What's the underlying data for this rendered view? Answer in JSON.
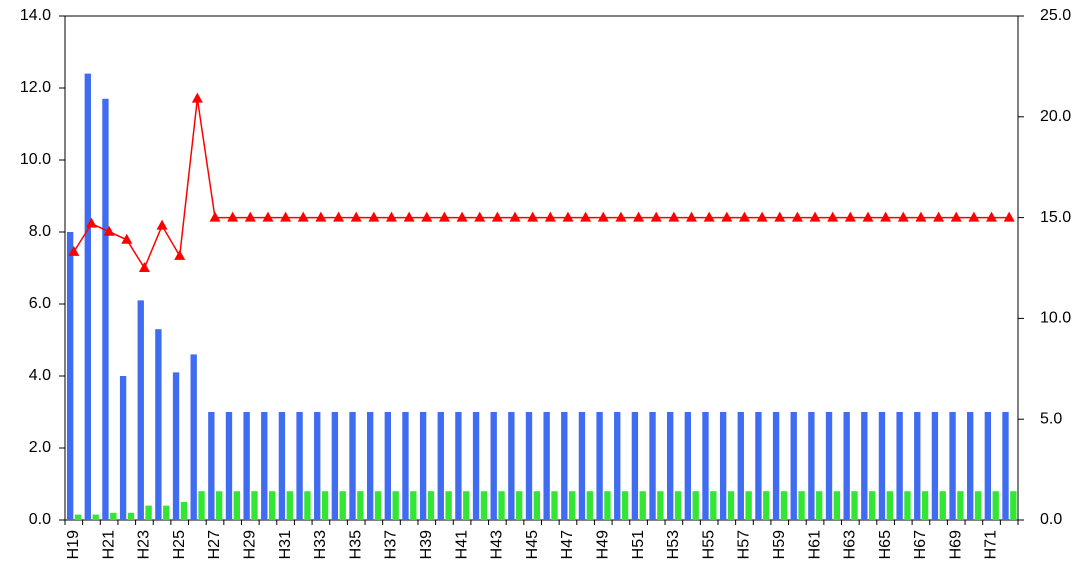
{
  "chart_data": {
    "type": "bar-line",
    "categories": [
      "H19",
      null,
      "H21",
      null,
      "H23",
      null,
      "H25",
      null,
      "H27",
      null,
      "H29",
      null,
      "H31",
      null,
      "H33",
      null,
      "H35",
      null,
      "H37",
      null,
      "H39",
      null,
      "H41",
      null,
      "H43",
      null,
      "H45",
      null,
      "H47",
      null,
      "H49",
      null,
      "H51",
      null,
      "H53",
      null,
      "H55",
      null,
      "H57",
      null,
      "H59",
      null,
      "H61",
      null,
      "H63",
      null,
      "H65",
      null,
      "H67",
      null,
      "H69",
      null,
      "H71",
      null
    ],
    "series": [
      {
        "type": "bar",
        "color": "#3f6cf0",
        "values": [
          8.0,
          12.4,
          11.7,
          4.0,
          6.1,
          5.3,
          4.1,
          4.6,
          3,
          3,
          3,
          3,
          3,
          3,
          3,
          3,
          3,
          3,
          3,
          3,
          3,
          3,
          3,
          3,
          3,
          3,
          3,
          3,
          3,
          3,
          3,
          3,
          3,
          3,
          3,
          3,
          3,
          3,
          3,
          3,
          3,
          3,
          3,
          3,
          3,
          3,
          3,
          3,
          3,
          3,
          3,
          3,
          3,
          3
        ]
      },
      {
        "type": "bar",
        "color": "#33e633",
        "values": [
          0.15,
          0.15,
          0.2,
          0.2,
          0.4,
          0.4,
          0.5,
          0.8,
          0.8,
          0.8,
          0.8,
          0.8,
          0.8,
          0.8,
          0.8,
          0.8,
          0.8,
          0.8,
          0.8,
          0.8,
          0.8,
          0.8,
          0.8,
          0.8,
          0.8,
          0.8,
          0.8,
          0.8,
          0.8,
          0.8,
          0.8,
          0.8,
          0.8,
          0.8,
          0.8,
          0.8,
          0.8,
          0.8,
          0.8,
          0.8,
          0.8,
          0.8,
          0.8,
          0.8,
          0.8,
          0.8,
          0.8,
          0.8,
          0.8,
          0.8,
          0.8,
          0.8,
          0.8,
          0.8
        ]
      },
      {
        "type": "line",
        "axis": "y2",
        "color": "#ff0000",
        "values": [
          13.3,
          14.7,
          14.3,
          13.9,
          12.5,
          14.6,
          13.1,
          20.9,
          15.0,
          15.0,
          15.0,
          15.0,
          15.0,
          15.0,
          15.0,
          15.0,
          15.0,
          15.0,
          15.0,
          15.0,
          15.0,
          15.0,
          15.0,
          15.0,
          15.0,
          15.0,
          15.0,
          15.0,
          15.0,
          15.0,
          15.0,
          15.0,
          15.0,
          15.0,
          15.0,
          15.0,
          15.0,
          15.0,
          15.0,
          15.0,
          15.0,
          15.0,
          15.0,
          15.0,
          15.0,
          15.0,
          15.0,
          15.0,
          15.0,
          15.0,
          15.0,
          15.0,
          15.0,
          15.0
        ]
      }
    ],
    "ylim": [
      0,
      14
    ],
    "yticks": [
      {
        "value": 0,
        "label": "0.0"
      },
      {
        "value": 2,
        "label": "2.0"
      },
      {
        "value": 4,
        "label": "4.0"
      },
      {
        "value": 6,
        "label": "6.0"
      },
      {
        "value": 8,
        "label": "8.0"
      },
      {
        "value": 10,
        "label": "10.0"
      },
      {
        "value": 12,
        "label": "12.0"
      },
      {
        "value": 14,
        "label": "14.0"
      }
    ],
    "y2lim": [
      0,
      25
    ],
    "y2ticks": [
      {
        "value": 0,
        "label": "0.0"
      },
      {
        "value": 5,
        "label": "5.0"
      },
      {
        "value": 10,
        "label": "10.0"
      },
      {
        "value": 15,
        "label": "15.0"
      },
      {
        "value": 20,
        "label": "20.0"
      },
      {
        "value": 25,
        "label": "25.0"
      }
    ],
    "grid": false
  }
}
